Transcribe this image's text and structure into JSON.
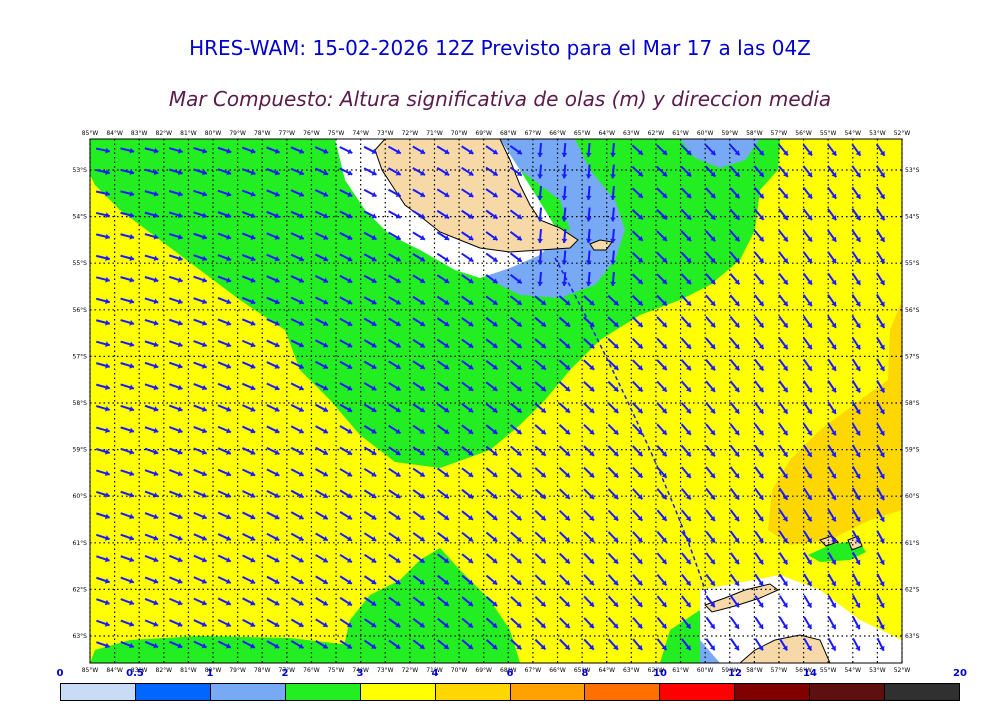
{
  "title": "HRES-WAM: 15-02-2026 12Z Previsto para el Mar 17 a las 04Z",
  "subtitle": "Mar Compuesto: Altura significativa de olas (m) y direccion media",
  "map": {
    "lon_labels": [
      "85°W",
      "84°W",
      "83°W",
      "82°W",
      "81°W",
      "80°W",
      "79°W",
      "78°W",
      "77°W",
      "76°W",
      "75°W",
      "74°W",
      "73°W",
      "72°W",
      "71°W",
      "70°W",
      "69°W",
      "68°W",
      "67°W",
      "66°W",
      "65°W",
      "64°W",
      "63°W",
      "62°W",
      "61°W",
      "60°W",
      "59°W",
      "58°W",
      "57°W",
      "56°W",
      "55°W",
      "54°W",
      "53°W",
      "52°W"
    ],
    "lat_labels": [
      "53°S",
      "54°S",
      "55°S",
      "56°S",
      "57°S",
      "58°S",
      "59°S",
      "60°S",
      "61°S",
      "62°S",
      "63°S"
    ],
    "colors": {
      "land": "#f7d9a8",
      "sea_2_3": "#22ee22",
      "sea_3_4": "#ffff00",
      "sea_4_6": "#ffd700",
      "sea_1_2": "#77a9f5",
      "sea_05_1": "#0066ff",
      "arrow": "#1a1aff"
    }
  },
  "legend": {
    "ticks": [
      "0",
      "0.5",
      "1",
      "2",
      "3",
      "4",
      "6",
      "8",
      "10",
      "12",
      "14",
      "20"
    ],
    "colors": [
      "#c9dcf7",
      "#0066ff",
      "#77a9f5",
      "#22ee22",
      "#ffff00",
      "#ffd700",
      "#ffa200",
      "#ff7000",
      "#ff0000",
      "#800000",
      "#5e1010",
      "#303030"
    ]
  }
}
